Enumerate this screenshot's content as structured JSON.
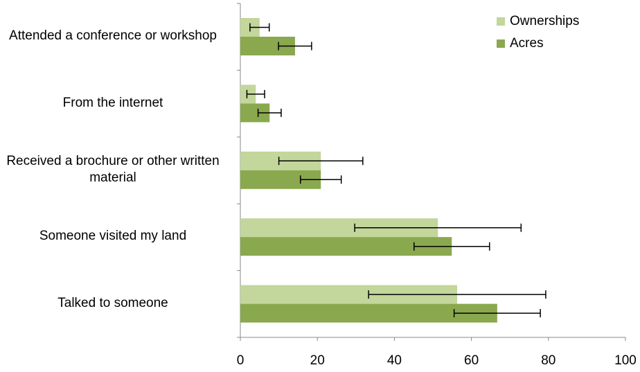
{
  "chart_data": {
    "type": "bar",
    "orientation": "horizontal",
    "categories": [
      "Attended a conference or workshop",
      "From the internet",
      "Received a brochure or other written material",
      "Someone visited my land",
      "Talked to someone"
    ],
    "series": [
      {
        "name": "Ownerships",
        "color": "#c3d69b",
        "values": [
          5.0,
          4.0,
          20.9,
          51.3,
          56.3
        ],
        "errors": [
          2.5,
          2.3,
          10.9,
          21.6,
          23.0
        ]
      },
      {
        "name": "Acres",
        "color": "#8aa84e",
        "values": [
          14.2,
          7.6,
          20.9,
          54.9,
          66.7
        ],
        "errors": [
          4.3,
          3.0,
          5.3,
          9.8,
          11.2
        ]
      }
    ],
    "xlim": [
      0,
      100
    ],
    "xticks": [
      0,
      20,
      40,
      60,
      80,
      100
    ],
    "legend": "top-right"
  }
}
